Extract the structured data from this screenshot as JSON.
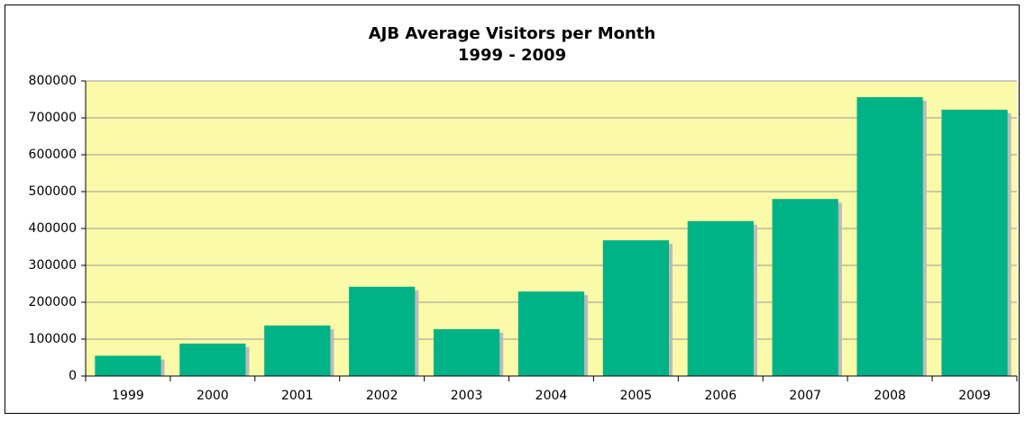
{
  "chart_data": {
    "type": "bar",
    "title": "AJB Average Visitors per Month",
    "subtitle": "1999 - 2009",
    "categories": [
      "1999",
      "2000",
      "2001",
      "2002",
      "2003",
      "2004",
      "2005",
      "2006",
      "2007",
      "2008",
      "2009"
    ],
    "values": [
      55000,
      88000,
      137000,
      242000,
      127000,
      229000,
      368000,
      420000,
      480000,
      756000,
      722000
    ],
    "color": "#00b386",
    "background": "#fafaa8",
    "ylim": [
      0,
      800000
    ],
    "yticks": [
      0,
      100000,
      200000,
      300000,
      400000,
      500000,
      600000,
      700000,
      800000
    ],
    "grid": true
  }
}
